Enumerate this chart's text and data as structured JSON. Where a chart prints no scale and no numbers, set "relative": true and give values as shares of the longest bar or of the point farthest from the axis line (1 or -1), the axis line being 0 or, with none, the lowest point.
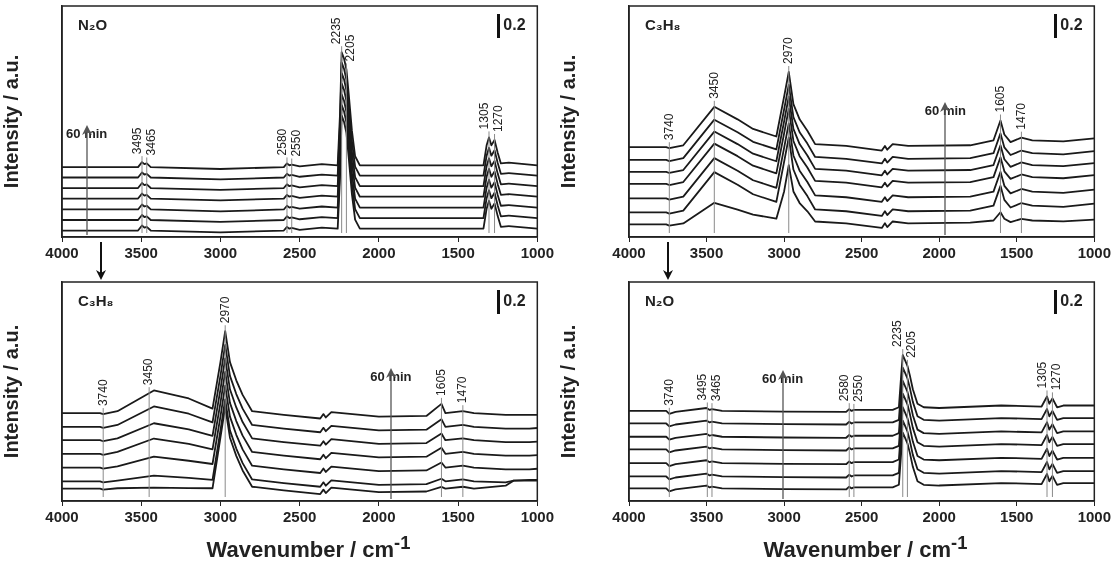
{
  "chart_data": [
    {
      "type": "line",
      "title": "N₂O",
      "ylabel": "Intensity / a.u.",
      "relative": true,
      "marker": "none",
      "xlim": [
        4000,
        1000
      ],
      "xticks": [
        4000,
        3500,
        3000,
        2500,
        2000,
        1500,
        1000
      ],
      "x": [
        4000,
        3520,
        3495,
        3480,
        3465,
        3440,
        3000,
        2600,
        2580,
        2565,
        2550,
        2500,
        2360,
        2260,
        2245,
        2235,
        2220,
        2205,
        2190,
        2170,
        2150,
        2120,
        1340,
        1320,
        1305,
        1290,
        1270,
        1250,
        1230,
        1180,
        1000
      ],
      "series": [
        {
          "color": "#1a1a1a",
          "values": [
            0.378,
            0.378,
            0.405,
            0.394,
            0.398,
            0.378,
            0.368,
            0.378,
            0.398,
            0.388,
            0.392,
            0.382,
            0.394,
            0.388,
            0.672,
            1.0,
            0.966,
            0.907,
            0.77,
            0.574,
            0.437,
            0.388,
            0.388,
            0.496,
            0.539,
            0.496,
            0.525,
            0.456,
            0.398,
            0.402,
            0.388
          ]
        },
        {
          "color": "#1a1a1a",
          "values": [
            0.322,
            0.322,
            0.349,
            0.338,
            0.342,
            0.322,
            0.312,
            0.322,
            0.342,
            0.332,
            0.336,
            0.326,
            0.338,
            0.332,
            0.616,
            0.944,
            0.91,
            0.851,
            0.714,
            0.518,
            0.381,
            0.332,
            0.332,
            0.44,
            0.483,
            0.44,
            0.469,
            0.4,
            0.342,
            0.346,
            0.332
          ]
        },
        {
          "color": "#1a1a1a",
          "values": [
            0.265,
            0.265,
            0.292,
            0.281,
            0.285,
            0.265,
            0.255,
            0.265,
            0.285,
            0.275,
            0.279,
            0.269,
            0.281,
            0.275,
            0.559,
            0.887,
            0.853,
            0.794,
            0.657,
            0.461,
            0.324,
            0.275,
            0.275,
            0.383,
            0.426,
            0.383,
            0.412,
            0.343,
            0.285,
            0.289,
            0.275
          ]
        },
        {
          "color": "#1a1a1a",
          "values": [
            0.208,
            0.208,
            0.235,
            0.224,
            0.228,
            0.208,
            0.198,
            0.208,
            0.228,
            0.218,
            0.222,
            0.212,
            0.224,
            0.218,
            0.502,
            0.83,
            0.796,
            0.737,
            0.6,
            0.404,
            0.267,
            0.218,
            0.218,
            0.326,
            0.369,
            0.326,
            0.355,
            0.286,
            0.228,
            0.232,
            0.218
          ]
        },
        {
          "color": "#1a1a1a",
          "values": [
            0.149,
            0.149,
            0.176,
            0.165,
            0.169,
            0.149,
            0.139,
            0.149,
            0.169,
            0.159,
            0.163,
            0.153,
            0.165,
            0.159,
            0.443,
            0.771,
            0.737,
            0.678,
            0.541,
            0.345,
            0.208,
            0.159,
            0.159,
            0.267,
            0.31,
            0.267,
            0.296,
            0.227,
            0.169,
            0.173,
            0.159
          ]
        },
        {
          "color": "#1a1a1a",
          "values": [
            0.092,
            0.092,
            0.119,
            0.108,
            0.112,
            0.092,
            0.082,
            0.092,
            0.112,
            0.102,
            0.106,
            0.096,
            0.108,
            0.102,
            0.386,
            0.714,
            0.68,
            0.621,
            0.484,
            0.288,
            0.151,
            0.102,
            0.102,
            0.21,
            0.253,
            0.21,
            0.239,
            0.17,
            0.112,
            0.116,
            0.102
          ]
        },
        {
          "color": "#1a1a1a",
          "values": [
            0.035,
            0.035,
            0.062,
            0.051,
            0.055,
            0.035,
            0.025,
            0.035,
            0.055,
            0.045,
            0.049,
            0.039,
            0.051,
            0.045,
            0.329,
            0.657,
            0.623,
            0.564,
            0.427,
            0.231,
            0.094,
            0.045,
            0.045,
            0.153,
            0.196,
            0.153,
            0.182,
            0.113,
            0.055,
            0.059,
            0.045
          ]
        }
      ],
      "ref_lines": [
        {
          "axis": "x",
          "value": 3495,
          "label": "3495"
        },
        {
          "axis": "x",
          "value": 3465,
          "label": "3465"
        },
        {
          "axis": "x",
          "value": 2580,
          "label": "2580"
        },
        {
          "axis": "x",
          "value": 2550,
          "label": "2550"
        },
        {
          "axis": "x",
          "value": 2235,
          "label": "2235"
        },
        {
          "axis": "x",
          "value": 2205,
          "label": "2205"
        },
        {
          "axis": "x",
          "value": 1305,
          "label": "1305"
        },
        {
          "axis": "x",
          "value": 1270,
          "label": "1270"
        }
      ],
      "annotations": [
        "0.2",
        "60 min"
      ]
    },
    {
      "type": "line",
      "title": "C₃H₈",
      "ylabel": "Intensity / a.u.",
      "relative": true,
      "marker": "none",
      "xlim": [
        4000,
        1000
      ],
      "xticks": [
        4000,
        3500,
        3000,
        2500,
        2000,
        1500,
        1000
      ],
      "x": [
        4000,
        3760,
        3740,
        3650,
        3450,
        3300,
        3200,
        3050,
        3000,
        2970,
        2940,
        2900,
        2850,
        2800,
        2600,
        2370,
        2350,
        2335,
        2300,
        2200,
        1800,
        1650,
        1605,
        1580,
        1540,
        1470,
        1400,
        1200,
        1000
      ],
      "series": [
        {
          "color": "#1a1a1a",
          "values": [
            0.545,
            0.545,
            0.538,
            0.556,
            0.789,
            0.713,
            0.655,
            0.609,
            0.851,
            1.0,
            0.805,
            0.713,
            0.644,
            0.563,
            0.552,
            0.524,
            0.552,
            0.529,
            0.563,
            0.552,
            0.556,
            0.586,
            0.706,
            0.621,
            0.575,
            0.602,
            0.586,
            0.579,
            0.598
          ]
        },
        {
          "color": "#1a1a1a",
          "values": [
            0.467,
            0.467,
            0.46,
            0.478,
            0.711,
            0.635,
            0.577,
            0.531,
            0.773,
            0.922,
            0.727,
            0.635,
            0.566,
            0.485,
            0.474,
            0.446,
            0.474,
            0.451,
            0.485,
            0.474,
            0.478,
            0.508,
            0.628,
            0.543,
            0.497,
            0.524,
            0.508,
            0.501,
            0.52
          ]
        },
        {
          "color": "#1a1a1a",
          "values": [
            0.395,
            0.395,
            0.388,
            0.406,
            0.639,
            0.563,
            0.505,
            0.459,
            0.701,
            0.85,
            0.655,
            0.563,
            0.494,
            0.413,
            0.402,
            0.374,
            0.402,
            0.379,
            0.413,
            0.402,
            0.406,
            0.436,
            0.556,
            0.471,
            0.425,
            0.452,
            0.436,
            0.429,
            0.448
          ]
        },
        {
          "color": "#1a1a1a",
          "values": [
            0.322,
            0.322,
            0.315,
            0.333,
            0.566,
            0.49,
            0.432,
            0.386,
            0.628,
            0.777,
            0.582,
            0.49,
            0.421,
            0.34,
            0.329,
            0.301,
            0.329,
            0.306,
            0.34,
            0.329,
            0.333,
            0.363,
            0.483,
            0.398,
            0.352,
            0.379,
            0.363,
            0.356,
            0.375
          ]
        },
        {
          "color": "#1a1a1a",
          "values": [
            0.234,
            0.234,
            0.227,
            0.245,
            0.478,
            0.402,
            0.344,
            0.298,
            0.54,
            0.689,
            0.494,
            0.402,
            0.333,
            0.252,
            0.241,
            0.213,
            0.241,
            0.218,
            0.252,
            0.241,
            0.245,
            0.275,
            0.395,
            0.31,
            0.264,
            0.291,
            0.275,
            0.268,
            0.287
          ]
        },
        {
          "color": "#1a1a1a",
          "values": [
            0.149,
            0.149,
            0.142,
            0.16,
            0.393,
            0.317,
            0.259,
            0.213,
            0.455,
            0.604,
            0.409,
            0.317,
            0.248,
            0.167,
            0.156,
            0.128,
            0.156,
            0.133,
            0.167,
            0.156,
            0.16,
            0.19,
            0.31,
            0.225,
            0.179,
            0.206,
            0.19,
            0.183,
            0.202
          ]
        },
        {
          "color": "#1a1a1a",
          "values": [
            0.076,
            0.076,
            0.069,
            0.082,
            0.207,
            0.166,
            0.136,
            0.111,
            0.276,
            0.436,
            0.276,
            0.206,
            0.156,
            0.094,
            0.083,
            0.055,
            0.083,
            0.06,
            0.094,
            0.083,
            0.087,
            0.1,
            0.15,
            0.111,
            0.09,
            0.11,
            0.1,
            0.095,
            0.105
          ]
        }
      ],
      "ref_lines": [
        {
          "axis": "x",
          "value": 3740,
          "label": "3740"
        },
        {
          "axis": "x",
          "value": 3450,
          "label": "3450"
        },
        {
          "axis": "x",
          "value": 2970,
          "label": "2970"
        },
        {
          "axis": "x",
          "value": 1605,
          "label": "1605"
        },
        {
          "axis": "x",
          "value": 1470,
          "label": "1470"
        }
      ],
      "annotations": [
        "0.2",
        "60 min"
      ]
    },
    {
      "type": "line",
      "title": "C₃H₈",
      "xlabel": "Wavenumber / cm$^{-1}$",
      "ylabel": "Intensity / a.u.",
      "relative": true,
      "marker": "none",
      "xlim": [
        4000,
        1000
      ],
      "xticks": [
        4000,
        3500,
        3000,
        2500,
        2000,
        1500,
        1000
      ],
      "x": [
        4000,
        3760,
        3740,
        3650,
        3420,
        3200,
        3050,
        3000,
        2970,
        2940,
        2900,
        2860,
        2800,
        2600,
        2370,
        2350,
        2335,
        2300,
        2000,
        1700,
        1605,
        1580,
        1470,
        1400,
        1200,
        1150,
        1050,
        1000
      ],
      "series": [
        {
          "color": "#1a1a1a",
          "values": [
            0.518,
            0.518,
            0.512,
            0.529,
            0.651,
            0.604,
            0.544,
            0.818,
            1.0,
            0.818,
            0.711,
            0.625,
            0.529,
            0.507,
            0.486,
            0.512,
            0.492,
            0.524,
            0.497,
            0.501,
            0.572,
            0.518,
            0.529,
            0.518,
            0.507,
            0.507,
            0.507,
            0.507
          ]
        },
        {
          "color": "#1a1a1a",
          "values": [
            0.437,
            0.437,
            0.431,
            0.448,
            0.557,
            0.514,
            0.463,
            0.737,
            0.919,
            0.737,
            0.63,
            0.544,
            0.448,
            0.426,
            0.405,
            0.431,
            0.411,
            0.443,
            0.416,
            0.42,
            0.482,
            0.437,
            0.448,
            0.437,
            0.426,
            0.426,
            0.426,
            0.43
          ]
        },
        {
          "color": "#1a1a1a",
          "values": [
            0.358,
            0.358,
            0.352,
            0.369,
            0.458,
            0.422,
            0.384,
            0.658,
            0.84,
            0.658,
            0.551,
            0.465,
            0.369,
            0.347,
            0.326,
            0.352,
            0.332,
            0.364,
            0.337,
            0.341,
            0.398,
            0.358,
            0.369,
            0.358,
            0.347,
            0.347,
            0.347,
            0.35
          ]
        },
        {
          "color": "#1a1a1a",
          "values": [
            0.278,
            0.278,
            0.272,
            0.289,
            0.368,
            0.336,
            0.304,
            0.578,
            0.76,
            0.578,
            0.471,
            0.385,
            0.289,
            0.267,
            0.246,
            0.272,
            0.252,
            0.284,
            0.257,
            0.261,
            0.314,
            0.278,
            0.289,
            0.278,
            0.267,
            0.267,
            0.267,
            0.27
          ]
        },
        {
          "color": "#1a1a1a",
          "values": [
            0.197,
            0.197,
            0.191,
            0.204,
            0.261,
            0.237,
            0.218,
            0.497,
            0.679,
            0.497,
            0.39,
            0.304,
            0.208,
            0.186,
            0.165,
            0.191,
            0.171,
            0.203,
            0.176,
            0.18,
            0.227,
            0.197,
            0.208,
            0.197,
            0.186,
            0.186,
            0.186,
            0.19
          ]
        },
        {
          "color": "#1a1a1a",
          "values": [
            0.116,
            0.116,
            0.11,
            0.12,
            0.15,
            0.136,
            0.125,
            0.416,
            0.598,
            0.416,
            0.309,
            0.223,
            0.127,
            0.105,
            0.084,
            0.11,
            0.09,
            0.122,
            0.095,
            0.099,
            0.131,
            0.116,
            0.127,
            0.116,
            0.11,
            0.12,
            0.125,
            0.125
          ]
        },
        {
          "color": "#1a1a1a",
          "values": [
            0.073,
            0.073,
            0.067,
            0.075,
            0.079,
            0.076,
            0.075,
            0.373,
            0.555,
            0.373,
            0.266,
            0.18,
            0.084,
            0.062,
            0.041,
            0.067,
            0.047,
            0.079,
            0.052,
            0.056,
            0.083,
            0.073,
            0.084,
            0.073,
            0.09,
            0.12,
            0.12,
            0.12
          ]
        }
      ],
      "ref_lines": [
        {
          "axis": "x",
          "value": 3740,
          "label": "3740"
        },
        {
          "axis": "x",
          "value": 3450,
          "label": "3450"
        },
        {
          "axis": "x",
          "value": 2970,
          "label": "2970"
        },
        {
          "axis": "x",
          "value": 1605,
          "label": "1605"
        },
        {
          "axis": "x",
          "value": 1470,
          "label": "1470"
        }
      ],
      "annotations": [
        "0.2",
        "60 min"
      ]
    },
    {
      "type": "line",
      "title": "N₂O",
      "xlabel": "Wavenumber / cm$^{-1}$",
      "ylabel": "Intensity / a.u.",
      "relative": true,
      "marker": "none",
      "xlim": [
        4000,
        1000
      ],
      "xticks": [
        4000,
        3500,
        3000,
        2500,
        2000,
        1500,
        1000
      ],
      "x": [
        4000,
        3760,
        3740,
        3700,
        3500,
        3480,
        3465,
        3400,
        3000,
        2600,
        2580,
        2565,
        2550,
        2300,
        2260,
        2245,
        2235,
        2220,
        2205,
        2190,
        2170,
        2140,
        2100,
        2000,
        1600,
        1340,
        1305,
        1290,
        1270,
        1240,
        1200,
        1000
      ],
      "series": [
        {
          "color": "#1a1a1a",
          "values": [
            0.617,
            0.617,
            0.597,
            0.61,
            0.637,
            0.624,
            0.629,
            0.617,
            0.612,
            0.61,
            0.629,
            0.617,
            0.624,
            0.624,
            0.642,
            0.864,
            1.0,
            0.963,
            0.926,
            0.864,
            0.765,
            0.666,
            0.642,
            0.637,
            0.654,
            0.647,
            0.716,
            0.666,
            0.703,
            0.642,
            0.654,
            0.654
          ]
        },
        {
          "color": "#1a1a1a",
          "values": [
            0.531,
            0.531,
            0.511,
            0.524,
            0.551,
            0.538,
            0.543,
            0.531,
            0.526,
            0.524,
            0.543,
            0.531,
            0.538,
            0.538,
            0.556,
            0.778,
            0.914,
            0.877,
            0.84,
            0.778,
            0.679,
            0.58,
            0.556,
            0.551,
            0.568,
            0.561,
            0.63,
            0.58,
            0.617,
            0.556,
            0.568,
            0.568
          ]
        },
        {
          "color": "#1a1a1a",
          "values": [
            0.44,
            0.44,
            0.42,
            0.433,
            0.46,
            0.447,
            0.452,
            0.44,
            0.435,
            0.433,
            0.452,
            0.44,
            0.447,
            0.447,
            0.465,
            0.687,
            0.823,
            0.786,
            0.749,
            0.687,
            0.588,
            0.489,
            0.465,
            0.46,
            0.477,
            0.47,
            0.539,
            0.489,
            0.526,
            0.465,
            0.477,
            0.477
          ]
        },
        {
          "color": "#1a1a1a",
          "values": [
            0.353,
            0.353,
            0.333,
            0.346,
            0.373,
            0.36,
            0.365,
            0.353,
            0.348,
            0.346,
            0.365,
            0.353,
            0.36,
            0.36,
            0.378,
            0.6,
            0.736,
            0.699,
            0.662,
            0.6,
            0.501,
            0.402,
            0.378,
            0.373,
            0.39,
            0.383,
            0.452,
            0.402,
            0.439,
            0.378,
            0.39,
            0.39
          ]
        },
        {
          "color": "#1a1a1a",
          "values": [
            0.259,
            0.259,
            0.239,
            0.252,
            0.279,
            0.266,
            0.271,
            0.259,
            0.254,
            0.252,
            0.271,
            0.259,
            0.266,
            0.266,
            0.284,
            0.506,
            0.642,
            0.605,
            0.568,
            0.506,
            0.407,
            0.308,
            0.284,
            0.279,
            0.296,
            0.289,
            0.358,
            0.308,
            0.345,
            0.284,
            0.296,
            0.296
          ]
        },
        {
          "color": "#1a1a1a",
          "values": [
            0.168,
            0.168,
            0.148,
            0.161,
            0.188,
            0.175,
            0.18,
            0.168,
            0.163,
            0.161,
            0.18,
            0.168,
            0.175,
            0.175,
            0.193,
            0.415,
            0.551,
            0.514,
            0.477,
            0.415,
            0.316,
            0.217,
            0.193,
            0.188,
            0.205,
            0.198,
            0.267,
            0.217,
            0.254,
            0.193,
            0.205,
            0.205
          ]
        },
        {
          "color": "#1a1a1a",
          "values": [
            0.086,
            0.086,
            0.066,
            0.079,
            0.106,
            0.093,
            0.098,
            0.086,
            0.081,
            0.079,
            0.098,
            0.086,
            0.093,
            0.093,
            0.111,
            0.333,
            0.469,
            0.432,
            0.395,
            0.333,
            0.234,
            0.135,
            0.111,
            0.106,
            0.123,
            0.116,
            0.185,
            0.135,
            0.172,
            0.111,
            0.123,
            0.123
          ]
        }
      ],
      "ref_lines": [
        {
          "axis": "x",
          "value": 3740,
          "label": "3740"
        },
        {
          "axis": "x",
          "value": 3495,
          "label": "3495"
        },
        {
          "axis": "x",
          "value": 3465,
          "label": "3465"
        },
        {
          "axis": "x",
          "value": 2580,
          "label": "2580"
        },
        {
          "axis": "x",
          "value": 2550,
          "label": "2550"
        },
        {
          "axis": "x",
          "value": 2235,
          "label": "2235"
        },
        {
          "axis": "x",
          "value": 2205,
          "label": "2205"
        },
        {
          "axis": "x",
          "value": 1305,
          "label": "1305"
        },
        {
          "axis": "x",
          "value": 1270,
          "label": "1270"
        }
      ],
      "annotations": [
        "0.2",
        "60 min"
      ]
    }
  ]
}
